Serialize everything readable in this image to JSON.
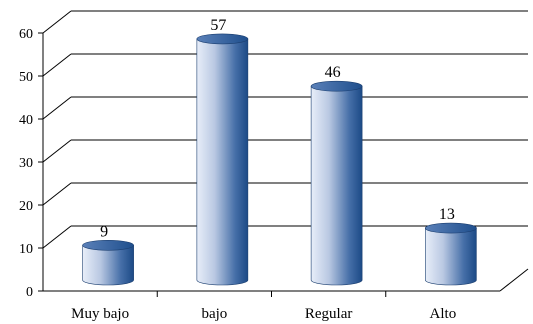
{
  "chart_data": {
    "type": "bar",
    "style": "3d-cylinder",
    "title": "",
    "xlabel": "",
    "ylabel": "",
    "categories": [
      "Muy bajo",
      "bajo",
      "Regular",
      "Alto"
    ],
    "values": [
      9,
      57,
      46,
      13
    ],
    "data_labels": [
      "9",
      "57",
      "46",
      "13"
    ],
    "ylim": [
      0,
      60
    ],
    "yticks": [
      "0",
      "10",
      "20",
      "30",
      "40",
      "50",
      "60"
    ],
    "grid": true,
    "legend": "none",
    "colors": {
      "bar_light": "#e8eef9",
      "bar_dark": "#1c4a86",
      "bar_top": "#2a5c9a",
      "gridline": "#000000"
    }
  }
}
